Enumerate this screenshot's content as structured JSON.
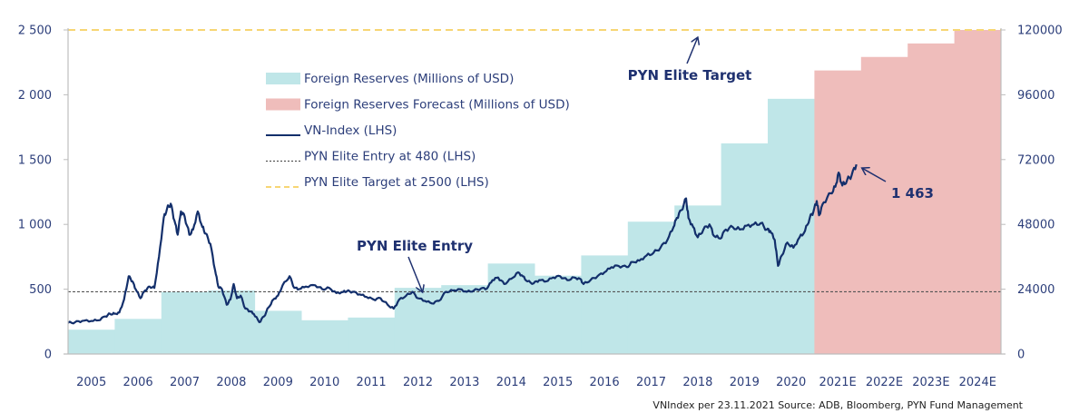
{
  "chart_data": {
    "type": "bar+line",
    "title": "",
    "categories": [
      "2005",
      "2006",
      "2007",
      "2008",
      "2009",
      "2010",
      "2011",
      "2012",
      "2013",
      "2014",
      "2015",
      "2016",
      "2017",
      "2018",
      "2019",
      "2020",
      "2021E",
      "2022E",
      "2023E",
      "2024E"
    ],
    "series": [
      {
        "name": "Foreign Reserves (Millions of USD)",
        "type": "bar",
        "axis": "right",
        "color": "#bfe6e8",
        "values": [
          9000,
          13000,
          23000,
          23500,
          16000,
          12500,
          13500,
          24500,
          25500,
          33500,
          29000,
          36500,
          49000,
          55000,
          78000,
          94500,
          null,
          null,
          null,
          null
        ]
      },
      {
        "name": "Foreign Reserves Forecast (Millions of USD)",
        "type": "bar",
        "axis": "right",
        "color": "#efbdbb",
        "values": [
          null,
          null,
          null,
          null,
          null,
          null,
          null,
          null,
          null,
          null,
          null,
          null,
          null,
          null,
          null,
          null,
          105000,
          110000,
          115000,
          120000
        ]
      },
      {
        "name": "VN-Index (LHS)",
        "type": "line",
        "axis": "left",
        "color": "#132f6b",
        "points": [
          [
            2005.0,
            240
          ],
          [
            2005.15,
            245
          ],
          [
            2005.3,
            255
          ],
          [
            2005.5,
            255
          ],
          [
            2005.65,
            260
          ],
          [
            2005.8,
            290
          ],
          [
            2005.9,
            310
          ],
          [
            2006.0,
            310
          ],
          [
            2006.1,
            320
          ],
          [
            2006.2,
            420
          ],
          [
            2006.3,
            600
          ],
          [
            2006.38,
            560
          ],
          [
            2006.45,
            500
          ],
          [
            2006.55,
            430
          ],
          [
            2006.65,
            490
          ],
          [
            2006.75,
            520
          ],
          [
            2006.85,
            510
          ],
          [
            2006.95,
            750
          ],
          [
            2007.05,
            1050
          ],
          [
            2007.12,
            1120
          ],
          [
            2007.2,
            1160
          ],
          [
            2007.28,
            1030
          ],
          [
            2007.35,
            920
          ],
          [
            2007.42,
            1100
          ],
          [
            2007.5,
            1060
          ],
          [
            2007.6,
            920
          ],
          [
            2007.68,
            960
          ],
          [
            2007.78,
            1100
          ],
          [
            2007.88,
            980
          ],
          [
            2007.95,
            930
          ],
          [
            2008.05,
            850
          ],
          [
            2008.15,
            650
          ],
          [
            2008.22,
            520
          ],
          [
            2008.3,
            500
          ],
          [
            2008.4,
            380
          ],
          [
            2008.48,
            420
          ],
          [
            2008.55,
            540
          ],
          [
            2008.62,
            430
          ],
          [
            2008.7,
            450
          ],
          [
            2008.8,
            350
          ],
          [
            2008.9,
            330
          ],
          [
            2008.98,
            310
          ],
          [
            2009.1,
            245
          ],
          [
            2009.2,
            290
          ],
          [
            2009.3,
            360
          ],
          [
            2009.4,
            420
          ],
          [
            2009.5,
            450
          ],
          [
            2009.6,
            530
          ],
          [
            2009.75,
            600
          ],
          [
            2009.85,
            510
          ],
          [
            2009.95,
            500
          ],
          [
            2010.1,
            520
          ],
          [
            2010.3,
            530
          ],
          [
            2010.45,
            500
          ],
          [
            2010.6,
            510
          ],
          [
            2010.75,
            470
          ],
          [
            2010.9,
            480
          ],
          [
            2010.98,
            485
          ],
          [
            2011.1,
            480
          ],
          [
            2011.25,
            460
          ],
          [
            2011.4,
            440
          ],
          [
            2011.55,
            420
          ],
          [
            2011.7,
            430
          ],
          [
            2011.85,
            380
          ],
          [
            2011.98,
            350
          ],
          [
            2012.1,
            420
          ],
          [
            2012.25,
            450
          ],
          [
            2012.38,
            480
          ],
          [
            2012.5,
            430
          ],
          [
            2012.65,
            410
          ],
          [
            2012.8,
            390
          ],
          [
            2012.95,
            410
          ],
          [
            2013.1,
            480
          ],
          [
            2013.25,
            490
          ],
          [
            2013.4,
            500
          ],
          [
            2013.55,
            480
          ],
          [
            2013.7,
            490
          ],
          [
            2013.85,
            505
          ],
          [
            2013.98,
            505
          ],
          [
            2014.1,
            570
          ],
          [
            2014.22,
            590
          ],
          [
            2014.35,
            540
          ],
          [
            2014.5,
            580
          ],
          [
            2014.65,
            630
          ],
          [
            2014.75,
            600
          ],
          [
            2014.85,
            560
          ],
          [
            2014.98,
            545
          ],
          [
            2015.1,
            570
          ],
          [
            2015.25,
            560
          ],
          [
            2015.4,
            590
          ],
          [
            2015.55,
            600
          ],
          [
            2015.7,
            570
          ],
          [
            2015.85,
            590
          ],
          [
            2015.98,
            580
          ],
          [
            2016.05,
            540
          ],
          [
            2016.2,
            570
          ],
          [
            2016.35,
            600
          ],
          [
            2016.5,
            630
          ],
          [
            2016.65,
            670
          ],
          [
            2016.8,
            680
          ],
          [
            2016.98,
            670
          ],
          [
            2017.1,
            710
          ],
          [
            2017.25,
            720
          ],
          [
            2017.4,
            760
          ],
          [
            2017.55,
            780
          ],
          [
            2017.7,
            820
          ],
          [
            2017.85,
            880
          ],
          [
            2017.98,
            980
          ],
          [
            2018.05,
            1050
          ],
          [
            2018.15,
            1110
          ],
          [
            2018.25,
            1200
          ],
          [
            2018.3,
            1050
          ],
          [
            2018.4,
            980
          ],
          [
            2018.5,
            900
          ],
          [
            2018.62,
            960
          ],
          [
            2018.75,
            1000
          ],
          [
            2018.85,
            910
          ],
          [
            2018.98,
            890
          ],
          [
            2019.1,
            960
          ],
          [
            2019.25,
            980
          ],
          [
            2019.4,
            960
          ],
          [
            2019.55,
            990
          ],
          [
            2019.7,
            1000
          ],
          [
            2019.85,
            1010
          ],
          [
            2019.98,
            960
          ],
          [
            2020.05,
            950
          ],
          [
            2020.15,
            880
          ],
          [
            2020.22,
            680
          ],
          [
            2020.3,
            760
          ],
          [
            2020.42,
            860
          ],
          [
            2020.55,
            820
          ],
          [
            2020.68,
            900
          ],
          [
            2020.8,
            950
          ],
          [
            2020.9,
            1050
          ],
          [
            2020.98,
            1100
          ],
          [
            2021.05,
            1180
          ],
          [
            2021.1,
            1070
          ],
          [
            2021.2,
            1170
          ],
          [
            2021.35,
            1240
          ],
          [
            2021.45,
            1290
          ],
          [
            2021.52,
            1400
          ],
          [
            2021.6,
            1300
          ],
          [
            2021.7,
            1340
          ],
          [
            2021.8,
            1380
          ],
          [
            2021.9,
            1463
          ]
        ]
      },
      {
        "name": "PYN Elite Entry at 480 (LHS)",
        "type": "hline",
        "axis": "left",
        "value": 480,
        "color": "#555555",
        "style": "dotted"
      },
      {
        "name": "PYN Elite Target at 2500 (LHS)",
        "type": "hline",
        "axis": "left",
        "value": 2500,
        "color": "#f7d674",
        "style": "dashed"
      }
    ],
    "left_axis": {
      "label": "",
      "range": [
        0,
        2500
      ],
      "ticks": [
        0,
        500,
        1000,
        1500,
        2000,
        2500
      ],
      "tick_labels": [
        "0",
        "500",
        "1 000",
        "1 500",
        "2 000",
        "2 500"
      ]
    },
    "right_axis": {
      "label": "",
      "range": [
        0,
        120000
      ],
      "ticks": [
        0,
        24000,
        48000,
        72000,
        96000,
        120000
      ],
      "tick_labels": [
        "0",
        "24000",
        "48000",
        "72000",
        "96000",
        "120000"
      ]
    },
    "xlabel": "",
    "grid": false,
    "legend": {
      "placement": "top-left-inside",
      "entries": [
        {
          "label": "Foreign Reserves (Millions of USD)",
          "marker": "swatch",
          "color": "#bfe6e8"
        },
        {
          "label": "Foreign Reserves Forecast (Millions of USD)",
          "marker": "swatch",
          "color": "#efbdbb"
        },
        {
          "label": "VN-Index (LHS)",
          "marker": "line",
          "color": "#132f6b"
        },
        {
          "label": "PYN Elite Entry at 480 (LHS)",
          "marker": "dotted",
          "color": "#555555"
        },
        {
          "label": "PYN Elite Target at 2500 (LHS)",
          "marker": "dashed",
          "color": "#f7d674"
        }
      ]
    },
    "annotations": [
      {
        "text": "PYN Elite Target",
        "points_to": {
          "year": 2018.5,
          "value": 2500
        }
      },
      {
        "text": "PYN Elite Entry",
        "points_to": {
          "year": 2012.6,
          "value": 560
        }
      },
      {
        "text": "1 463",
        "points_to": {
          "year": 2021.9,
          "value": 1463
        }
      }
    ],
    "source_note": "VNIndex per 23.11.2021 Source: ADB, Bloomberg, PYN Fund Management"
  }
}
